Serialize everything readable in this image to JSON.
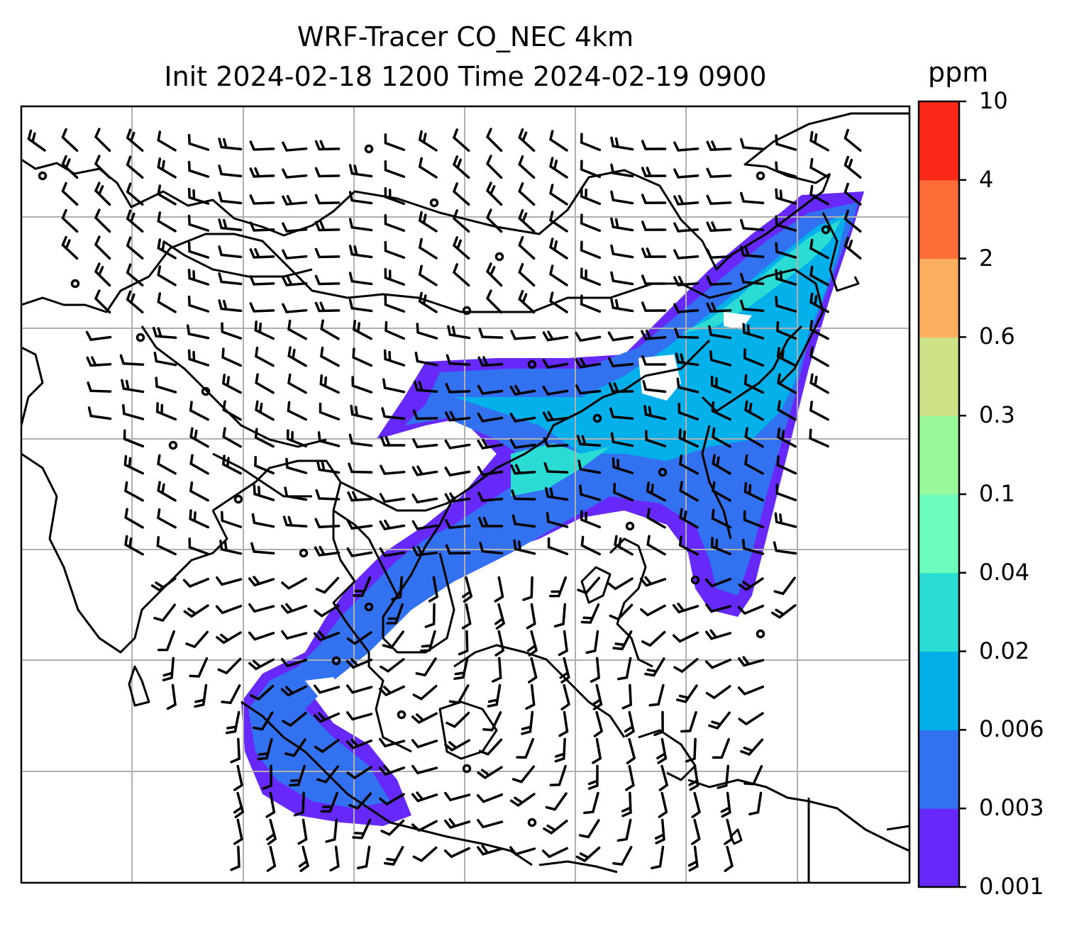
{
  "title": {
    "line1": "WRF-Tracer CO_NEC 4km",
    "line2": "Init 2024-02-18 1200 Time 2024-02-19 0900"
  },
  "colorbar": {
    "unit": "ppm",
    "levels": [
      "0.001",
      "0.003",
      "0.006",
      "0.02",
      "0.04",
      "0.1",
      "0.3",
      "0.6",
      "2",
      "4",
      "10"
    ],
    "colors": [
      "#6629fa",
      "#3271f0",
      "#04b0ea",
      "#2bdcd5",
      "#6bfcbc",
      "#99f899",
      "#cde186",
      "#fcaf5e",
      "#fe6d38",
      "#fa2818"
    ]
  },
  "map": {
    "grid": "on",
    "overlays": [
      "coastlines",
      "country-borders",
      "wind-barbs",
      "co-tracer-field"
    ]
  }
}
